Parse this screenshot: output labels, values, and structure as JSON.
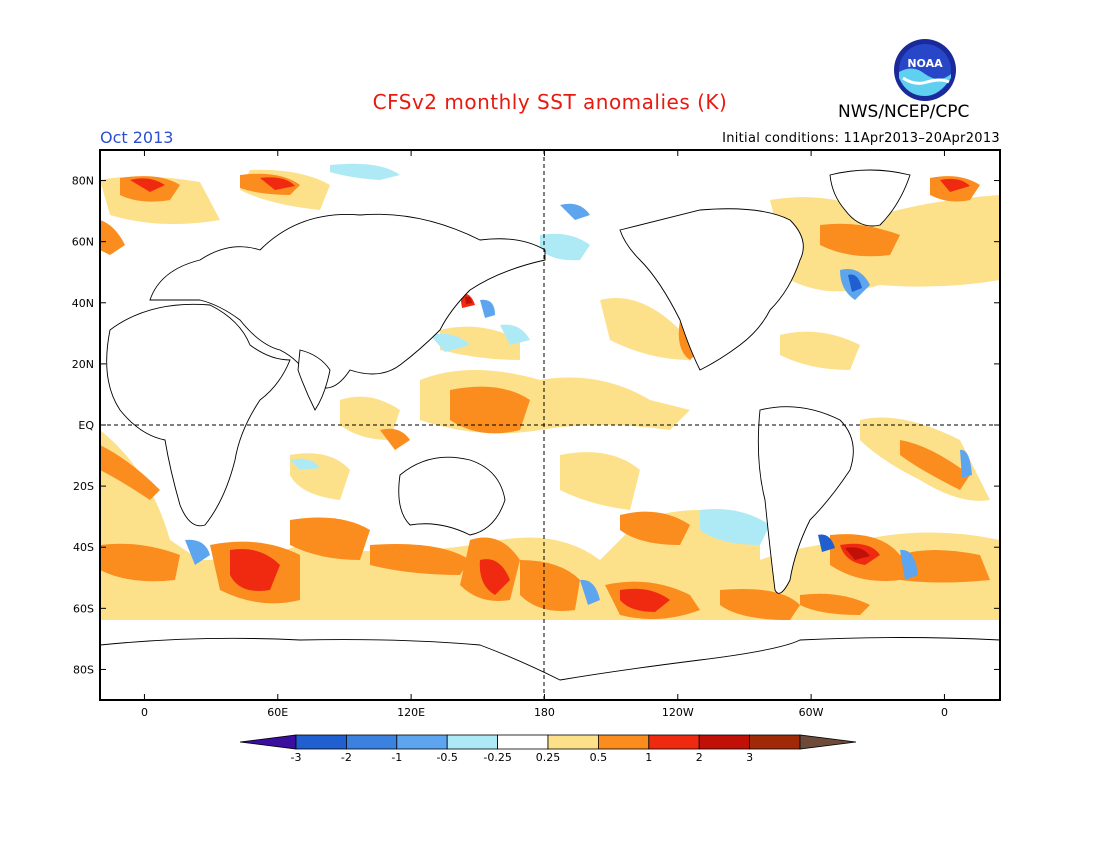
{
  "header": {
    "title": "CFSv2 monthly SST anomalies (K)",
    "agency": "NWS/NCEP/CPC",
    "valid_month": "Oct 2013",
    "initial_conditions": "Initial conditions: 11Apr2013–20Apr2013",
    "logo_text": "NOAA"
  },
  "map": {
    "lat_labels": [
      "80N",
      "60N",
      "40N",
      "20N",
      "EQ",
      "20S",
      "40S",
      "60S",
      "80S"
    ],
    "lon_labels": [
      "0",
      "60E",
      "120E",
      "180",
      "120W",
      "60W",
      "0"
    ],
    "lon_range": [
      -20,
      385
    ],
    "lat_range": [
      -90,
      90
    ]
  },
  "legend": {
    "levels": [
      "-3",
      "-2",
      "-1",
      "-0.5",
      "-0.25",
      "0.25",
      "0.5",
      "1",
      "2",
      "3"
    ],
    "colors": [
      "#3a0fa0",
      "#1f5fcf",
      "#3b82e0",
      "#5da5ee",
      "#aeeaf5",
      "#ffffff",
      "#fde08a",
      "#fb8c1e",
      "#ef2a10",
      "#c01008",
      "#a02a08",
      "#6e4a38"
    ]
  },
  "colors": {
    "land_outline": "#000000",
    "anom_025": "#fde08a",
    "anom_05": "#fb8c1e",
    "anom_1": "#ef2a10",
    "anom_2": "#c01008",
    "neg_025": "#aeeaf5",
    "neg_05": "#5da5ee",
    "neg_1": "#3b82e0",
    "neg_2": "#1f5fcf"
  }
}
